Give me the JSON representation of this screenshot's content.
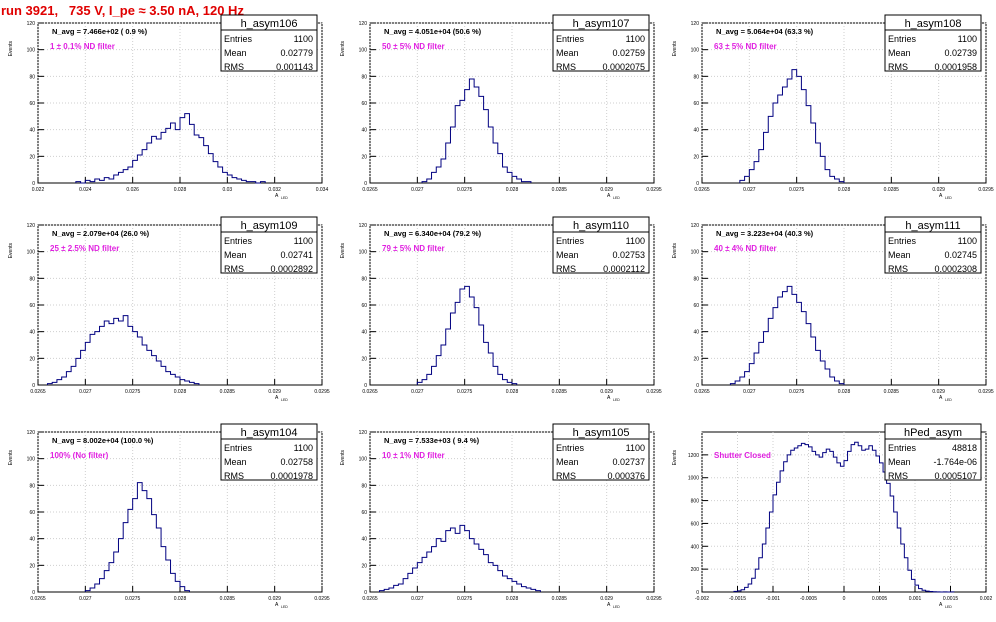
{
  "title": "run 3921,   735 V, I_pe ≈ 3.50 nA, 120 Hz",
  "stats_labels": {
    "entries": "Entries",
    "mean": "Mean",
    "rms": "RMS"
  },
  "y_axis_label": "Events",
  "x_axis_label": "A",
  "x_axis_subscript": "LED",
  "chart_data": [
    {
      "type": "histogram",
      "name": "h_asym106",
      "navg": "N_avg = 7.466e+02 ( 0.9 %)",
      "filter": "1 ± 0.1% ND filter",
      "filter_color": "#e020e0",
      "stats": {
        "entries": "1100",
        "mean": "0.02779",
        "rms": "0.001143"
      },
      "xlim": [
        0.022,
        0.034
      ],
      "ylim": [
        0,
        120
      ],
      "xticks": [
        0.022,
        0.024,
        0.026,
        0.028,
        0.03,
        0.032,
        0.034
      ],
      "xtick_labels": [
        "0.022",
        "0.024",
        "0.026",
        "0.028",
        "0.03",
        "0.032",
        "0.034"
      ],
      "yticks": [
        0,
        20,
        40,
        60,
        80,
        100,
        120
      ],
      "bins": [
        0.0236,
        0.0238,
        0.024,
        0.0242,
        0.0244,
        0.0246,
        0.0248,
        0.025,
        0.0252,
        0.0254,
        0.0256,
        0.0258,
        0.026,
        0.0262,
        0.0264,
        0.0266,
        0.0268,
        0.027,
        0.0272,
        0.0274,
        0.0276,
        0.0278,
        0.028,
        0.0282,
        0.0284,
        0.0286,
        0.0288,
        0.029,
        0.0292,
        0.0294,
        0.0296,
        0.0298,
        0.03,
        0.0302,
        0.0304,
        0.0306,
        0.0308,
        0.031,
        0.0312,
        0.0314
      ],
      "values": [
        1,
        0,
        2,
        1,
        3,
        2,
        4,
        3,
        6,
        8,
        10,
        12,
        17,
        21,
        25,
        30,
        35,
        33,
        38,
        41,
        45,
        40,
        49,
        52,
        44,
        36,
        34,
        28,
        22,
        16,
        12,
        8,
        6,
        4,
        3,
        2,
        1,
        1,
        0,
        1
      ]
    },
    {
      "type": "histogram",
      "name": "h_asym107",
      "navg": "N_avg = 4.051e+04 (50.6 %)",
      "filter": "50 ± 5% ND filter",
      "filter_color": "#e020e0",
      "stats": {
        "entries": "1100",
        "mean": "0.02759",
        "rms": "0.0002075"
      },
      "xlim": [
        0.0265,
        0.0295
      ],
      "ylim": [
        0,
        120
      ],
      "xticks": [
        0.0265,
        0.027,
        0.0275,
        0.028,
        0.0285,
        0.029,
        0.0295
      ],
      "xtick_labels": [
        "0.0265",
        "0.027",
        "0.0275",
        "0.028",
        "0.0285",
        "0.029",
        "0.0295"
      ],
      "yticks": [
        0,
        20,
        40,
        60,
        80,
        100,
        120
      ],
      "bins": [
        0.02705,
        0.0271,
        0.02715,
        0.0272,
        0.02725,
        0.0273,
        0.02735,
        0.0274,
        0.02745,
        0.0275,
        0.02755,
        0.0276,
        0.02765,
        0.0277,
        0.02775,
        0.0278,
        0.02785,
        0.0279,
        0.02795,
        0.028,
        0.02805,
        0.0281,
        0.02815
      ],
      "values": [
        1,
        3,
        8,
        12,
        18,
        30,
        42,
        58,
        62,
        70,
        78,
        72,
        65,
        55,
        42,
        30,
        22,
        12,
        8,
        5,
        3,
        1,
        1
      ]
    },
    {
      "type": "histogram",
      "name": "h_asym108",
      "navg": "N_avg = 5.064e+04 (63.3 %)",
      "filter": "63 ± 5% ND filter",
      "filter_color": "#e020e0",
      "stats": {
        "entries": "1100",
        "mean": "0.02739",
        "rms": "0.0001958"
      },
      "xlim": [
        0.0265,
        0.0295
      ],
      "ylim": [
        0,
        120
      ],
      "xticks": [
        0.0265,
        0.027,
        0.0275,
        0.028,
        0.0285,
        0.029,
        0.0295
      ],
      "xtick_labels": [
        "0.0265",
        "0.027",
        "0.0275",
        "0.028",
        "0.0285",
        "0.029",
        "0.0295"
      ],
      "yticks": [
        0,
        20,
        40,
        60,
        80,
        100,
        120
      ],
      "bins": [
        0.0269,
        0.02695,
        0.027,
        0.02705,
        0.0271,
        0.02715,
        0.0272,
        0.02725,
        0.0273,
        0.02735,
        0.0274,
        0.02745,
        0.0275,
        0.02755,
        0.0276,
        0.02765,
        0.0277,
        0.02775,
        0.0278,
        0.02785,
        0.0279,
        0.02795
      ],
      "values": [
        2,
        5,
        10,
        16,
        25,
        38,
        50,
        60,
        66,
        72,
        78,
        85,
        80,
        70,
        58,
        45,
        30,
        20,
        10,
        5,
        3,
        1
      ]
    },
    {
      "type": "histogram",
      "name": "h_asym109",
      "navg": "N_avg = 2.079e+04 (26.0 %)",
      "filter": "25 ± 2.5% ND filter",
      "filter_color": "#e020e0",
      "stats": {
        "entries": "1100",
        "mean": "0.02741",
        "rms": "0.0002892"
      },
      "xlim": [
        0.0265,
        0.0295
      ],
      "ylim": [
        0,
        120
      ],
      "xticks": [
        0.0265,
        0.027,
        0.0275,
        0.028,
        0.0285,
        0.029,
        0.0295
      ],
      "xtick_labels": [
        "0.0265",
        "0.027",
        "0.0275",
        "0.028",
        "0.0285",
        "0.029",
        "0.0295"
      ],
      "yticks": [
        0,
        20,
        40,
        60,
        80,
        100,
        120
      ],
      "bins": [
        0.0266,
        0.02665,
        0.0267,
        0.02675,
        0.0268,
        0.02685,
        0.0269,
        0.02695,
        0.027,
        0.02705,
        0.0271,
        0.02715,
        0.0272,
        0.02725,
        0.0273,
        0.02735,
        0.0274,
        0.02745,
        0.0275,
        0.02755,
        0.0276,
        0.02765,
        0.0277,
        0.02775,
        0.0278,
        0.02785,
        0.0279,
        0.02795,
        0.028,
        0.02805,
        0.0281,
        0.02815
      ],
      "values": [
        1,
        2,
        4,
        6,
        10,
        14,
        20,
        26,
        32,
        38,
        40,
        44,
        48,
        46,
        50,
        48,
        52,
        44,
        40,
        36,
        30,
        26,
        22,
        18,
        14,
        10,
        8,
        6,
        4,
        3,
        2,
        1
      ]
    },
    {
      "type": "histogram",
      "name": "h_asym110",
      "navg": "N_avg = 6.340e+04 (79.2 %)",
      "filter": "79 ± 5% ND filter",
      "filter_color": "#e020e0",
      "stats": {
        "entries": "1100",
        "mean": "0.02753",
        "rms": "0.0002112"
      },
      "xlim": [
        0.0265,
        0.0295
      ],
      "ylim": [
        0,
        120
      ],
      "xticks": [
        0.0265,
        0.027,
        0.0275,
        0.028,
        0.0285,
        0.029,
        0.0295
      ],
      "xtick_labels": [
        "0.0265",
        "0.027",
        "0.0275",
        "0.028",
        "0.0285",
        "0.029",
        "0.0295"
      ],
      "yticks": [
        0,
        20,
        40,
        60,
        80,
        100,
        120
      ],
      "bins": [
        0.027,
        0.02705,
        0.0271,
        0.02715,
        0.0272,
        0.02725,
        0.0273,
        0.02735,
        0.0274,
        0.02745,
        0.0275,
        0.02755,
        0.0276,
        0.02765,
        0.0277,
        0.02775,
        0.0278,
        0.02785,
        0.0279,
        0.02795,
        0.028
      ],
      "values": [
        2,
        4,
        8,
        14,
        22,
        30,
        42,
        54,
        62,
        72,
        74,
        66,
        58,
        45,
        32,
        24,
        14,
        8,
        4,
        2,
        1
      ]
    },
    {
      "type": "histogram",
      "name": "h_asym111",
      "navg": "N_avg = 3.223e+04 (40.3 %)",
      "filter": "40 ± 4% ND filter",
      "filter_color": "#e020e0",
      "stats": {
        "entries": "1100",
        "mean": "0.02745",
        "rms": "0.0002308"
      },
      "xlim": [
        0.0265,
        0.0295
      ],
      "ylim": [
        0,
        120
      ],
      "xticks": [
        0.0265,
        0.027,
        0.0275,
        0.028,
        0.0285,
        0.029,
        0.0295
      ],
      "xtick_labels": [
        "0.0265",
        "0.027",
        "0.0275",
        "0.028",
        "0.0285",
        "0.029",
        "0.0295"
      ],
      "yticks": [
        0,
        20,
        40,
        60,
        80,
        100,
        120
      ],
      "bins": [
        0.0268,
        0.02685,
        0.0269,
        0.02695,
        0.027,
        0.02705,
        0.0271,
        0.02715,
        0.0272,
        0.02725,
        0.0273,
        0.02735,
        0.0274,
        0.02745,
        0.0275,
        0.02755,
        0.0276,
        0.02765,
        0.0277,
        0.02775,
        0.0278,
        0.02785,
        0.0279,
        0.02795
      ],
      "values": [
        1,
        3,
        6,
        10,
        16,
        24,
        32,
        40,
        50,
        58,
        66,
        70,
        74,
        68,
        62,
        55,
        46,
        36,
        26,
        18,
        12,
        6,
        3,
        1
      ]
    },
    {
      "type": "histogram",
      "name": "h_asym104",
      "navg": "N_avg = 8.002e+04 (100.0 %)",
      "filter": "100% (No filter)",
      "filter_color": "#e020e0",
      "stats": {
        "entries": "1100",
        "mean": "0.02758",
        "rms": "0.0001978"
      },
      "xlim": [
        0.0265,
        0.0295
      ],
      "ylim": [
        0,
        120
      ],
      "xticks": [
        0.0265,
        0.027,
        0.0275,
        0.028,
        0.0285,
        0.029,
        0.0295
      ],
      "xtick_labels": [
        "0.0265",
        "0.027",
        "0.0275",
        "0.028",
        "0.0285",
        "0.029",
        "0.0295"
      ],
      "yticks": [
        0,
        20,
        40,
        60,
        80,
        100,
        120
      ],
      "bins": [
        0.027,
        0.02705,
        0.0271,
        0.02715,
        0.0272,
        0.02725,
        0.0273,
        0.02735,
        0.0274,
        0.02745,
        0.0275,
        0.02755,
        0.0276,
        0.02765,
        0.0277,
        0.02775,
        0.0278,
        0.02785,
        0.0279,
        0.02795,
        0.028,
        0.02805
      ],
      "values": [
        1,
        3,
        6,
        10,
        16,
        22,
        30,
        40,
        52,
        62,
        70,
        82,
        76,
        70,
        58,
        48,
        34,
        24,
        14,
        8,
        4,
        1
      ]
    },
    {
      "type": "histogram",
      "name": "h_asym105",
      "navg": "N_avg = 7.533e+03 ( 9.4 %)",
      "filter": "10 ± 1% ND filter",
      "filter_color": "#e020e0",
      "stats": {
        "entries": "1100",
        "mean": "0.02737",
        "rms": "0.000376"
      },
      "xlim": [
        0.0265,
        0.0295
      ],
      "ylim": [
        0,
        120
      ],
      "xticks": [
        0.0265,
        0.027,
        0.0275,
        0.028,
        0.0285,
        0.029,
        0.0295
      ],
      "xtick_labels": [
        "0.0265",
        "0.027",
        "0.0275",
        "0.028",
        "0.0285",
        "0.029",
        "0.0295"
      ],
      "yticks": [
        0,
        20,
        40,
        60,
        80,
        100,
        120
      ],
      "bins": [
        0.0266,
        0.02665,
        0.0267,
        0.02675,
        0.0268,
        0.02685,
        0.0269,
        0.02695,
        0.027,
        0.02705,
        0.0271,
        0.02715,
        0.0272,
        0.02725,
        0.0273,
        0.02735,
        0.0274,
        0.02745,
        0.0275,
        0.02755,
        0.0276,
        0.02765,
        0.0277,
        0.02775,
        0.0278,
        0.02785,
        0.0279,
        0.02795,
        0.028,
        0.02805,
        0.0281,
        0.02815,
        0.0282,
        0.02825
      ],
      "values": [
        1,
        2,
        3,
        5,
        6,
        10,
        14,
        18,
        22,
        26,
        30,
        34,
        40,
        38,
        46,
        48,
        44,
        50,
        46,
        40,
        36,
        32,
        28,
        22,
        20,
        16,
        12,
        10,
        8,
        6,
        4,
        3,
        2,
        1
      ]
    },
    {
      "type": "histogram",
      "name": "hPed_asym",
      "navg": "",
      "filter": "Shutter Closed",
      "filter_color": "#e020e0",
      "stats": {
        "entries": "48818",
        "mean": "-1.764e-06",
        "rms": "0.0005107"
      },
      "xlim": [
        -0.002,
        0.002
      ],
      "ylim": [
        0,
        1400
      ],
      "xticks": [
        -0.002,
        -0.0015,
        -0.001,
        -0.0005,
        0,
        0.0005,
        0.001,
        0.0015,
        0.002
      ],
      "xtick_labels": [
        "-0.002",
        "-0.0015",
        "-0.001",
        "-0.0005",
        "0",
        "0.0005",
        "0.001",
        "0.0015",
        "0.002"
      ],
      "yticks": [
        0,
        200,
        400,
        600,
        800,
        1000,
        1200
      ],
      "bins": [
        -0.00155,
        -0.0015,
        -0.00145,
        -0.0014,
        -0.00135,
        -0.0013,
        -0.00125,
        -0.0012,
        -0.00115,
        -0.0011,
        -0.00105,
        -0.001,
        -0.00095,
        -0.0009,
        -0.00085,
        -0.0008,
        -0.00075,
        -0.0007,
        -0.00065,
        -0.0006,
        -0.00055,
        -0.0005,
        -0.00045,
        -0.0004,
        -0.00035,
        -0.0003,
        -0.00025,
        -0.0002,
        -0.00015,
        -0.0001,
        -5e-05,
        0,
        5e-05,
        0.0001,
        0.00015,
        0.0002,
        0.00025,
        0.0003,
        0.00035,
        0.0004,
        0.00045,
        0.0005,
        0.00055,
        0.0006,
        0.00065,
        0.0007,
        0.00075,
        0.0008,
        0.00085,
        0.0009,
        0.00095,
        0.001,
        0.00105,
        0.0011,
        0.00115,
        0.0012,
        0.00125,
        0.0013,
        0.00135,
        0.0014,
        0.00145,
        0.0015
      ],
      "values": [
        5,
        10,
        20,
        40,
        70,
        120,
        200,
        300,
        420,
        560,
        700,
        850,
        960,
        1060,
        1140,
        1200,
        1240,
        1260,
        1280,
        1300,
        1290,
        1270,
        1230,
        1200,
        1180,
        1220,
        1250,
        1230,
        1180,
        1130,
        1100,
        1150,
        1230,
        1290,
        1310,
        1280,
        1240,
        1250,
        1280,
        1240,
        1190,
        1130,
        1050,
        950,
        840,
        700,
        560,
        420,
        300,
        190,
        110,
        60,
        30,
        15,
        8,
        4,
        2,
        1,
        0,
        1,
        0,
        1
      ]
    }
  ]
}
